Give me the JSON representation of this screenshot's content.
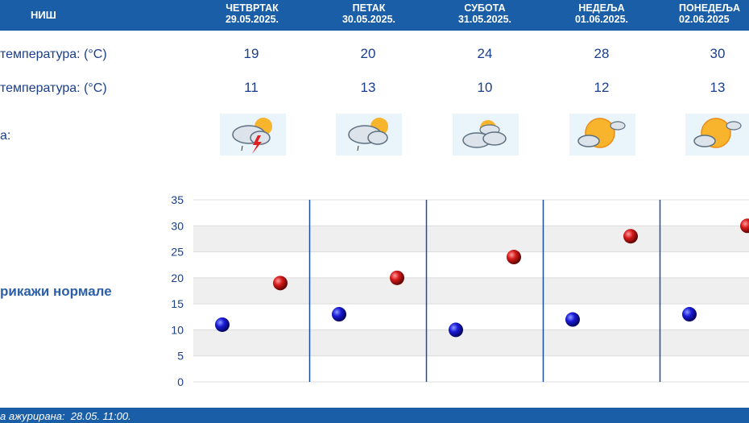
{
  "header": {
    "city": "НИШ",
    "days": [
      {
        "name": "ЧЕТВРТАК",
        "date": "29.05.2025."
      },
      {
        "name": "ПЕТАК",
        "date": "30.05.2025."
      },
      {
        "name": "СУБОТА",
        "date": "31.05.2025."
      },
      {
        "name": "НЕДЕЉА",
        "date": "01.06.2025."
      },
      {
        "name": "ПОНЕДЕЉА",
        "date": "02.06.2025"
      }
    ]
  },
  "rows": {
    "max_label": "температура: (°C)",
    "min_label": "температура: (°C)",
    "weather_label": "а:",
    "max": [
      "19",
      "20",
      "24",
      "28",
      "30"
    ],
    "min": [
      "11",
      "13",
      "10",
      "12",
      "13"
    ]
  },
  "icons": [
    "thunderstorm-cloud-sun-icon",
    "rain-cloud-sun-icon",
    "partly-cloudy-icon",
    "mostly-sunny-icon",
    "mostly-sunny-icon"
  ],
  "normals_label": "рикажи нормале",
  "footer": {
    "text": "а ажурирана:  28.05. 11:00."
  },
  "chart_data": {
    "type": "scatter",
    "yticks": [
      "0",
      "5",
      "10",
      "15",
      "20",
      "25",
      "30",
      "35"
    ],
    "ylim": [
      0,
      35
    ],
    "categories": [
      "29.05.2025.",
      "30.05.2025.",
      "31.05.2025.",
      "01.06.2025.",
      "02.06.2025"
    ],
    "series": [
      {
        "values": [
          11,
          13,
          10,
          12,
          13
        ],
        "color": "#1a1ad6"
      },
      {
        "values": [
          19,
          20,
          24,
          28,
          30
        ],
        "color": "#d61a1a"
      }
    ],
    "grid": true,
    "colors": {
      "band": "#efefef",
      "axis": "#1a4f9c",
      "tick_text": "#1a3e8a"
    }
  },
  "colors": {
    "header_bg": "#1a5ea8",
    "text": "#1a3e8a"
  }
}
